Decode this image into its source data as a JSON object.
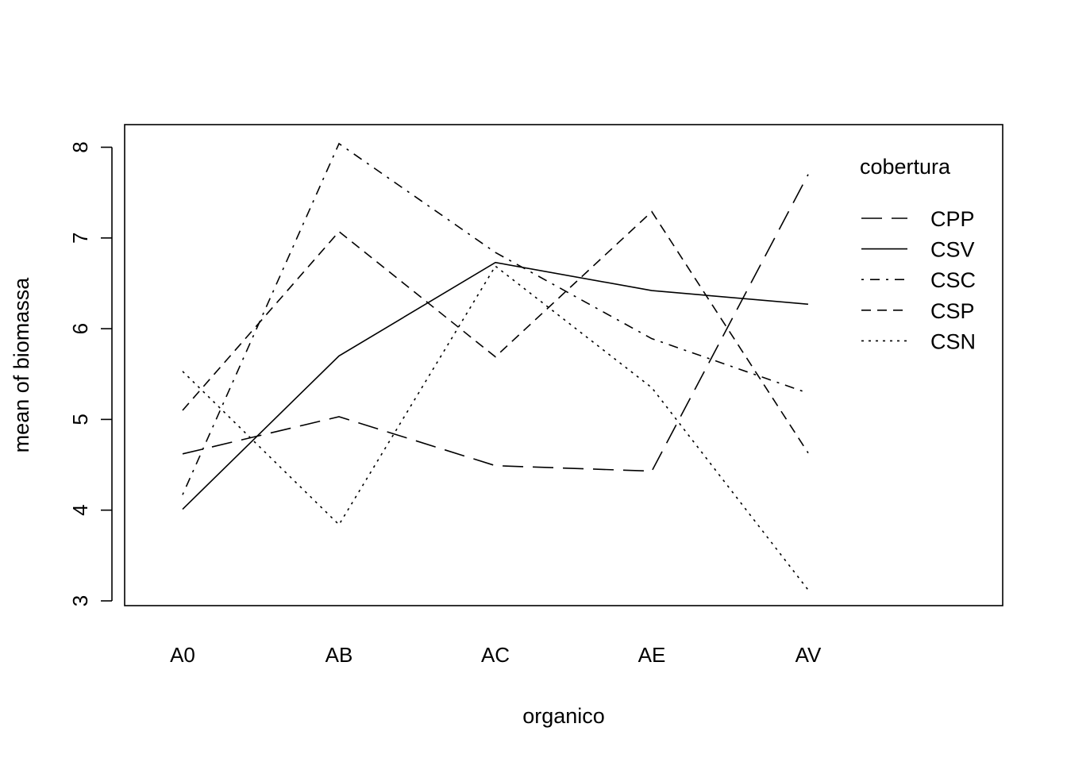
{
  "chart_data": {
    "type": "line",
    "title": "",
    "xlabel": "organico",
    "ylabel": "mean of  biomassa",
    "categories": [
      "A0",
      "AB",
      "AC",
      "AE",
      "AV"
    ],
    "ylim": [
      3,
      8
    ],
    "yticks": [
      3,
      4,
      5,
      6,
      7,
      8
    ],
    "grid": false,
    "legend": {
      "title": "cobertura",
      "position": "top-right"
    },
    "series": [
      {
        "name": "CPP",
        "dash": "long-dash",
        "values": [
          4.62,
          5.03,
          4.49,
          4.43,
          7.7
        ]
      },
      {
        "name": "CSV",
        "dash": "solid",
        "values": [
          4.01,
          5.7,
          6.73,
          6.42,
          6.27
        ]
      },
      {
        "name": "CSC",
        "dash": "dot-dash",
        "values": [
          4.17,
          8.04,
          6.84,
          5.89,
          5.29
        ]
      },
      {
        "name": "CSP",
        "dash": "dashed",
        "values": [
          5.1,
          7.07,
          5.69,
          7.29,
          4.63
        ]
      },
      {
        "name": "CSN",
        "dash": "dotted",
        "values": [
          5.53,
          3.84,
          6.69,
          5.35,
          3.12
        ]
      }
    ]
  }
}
